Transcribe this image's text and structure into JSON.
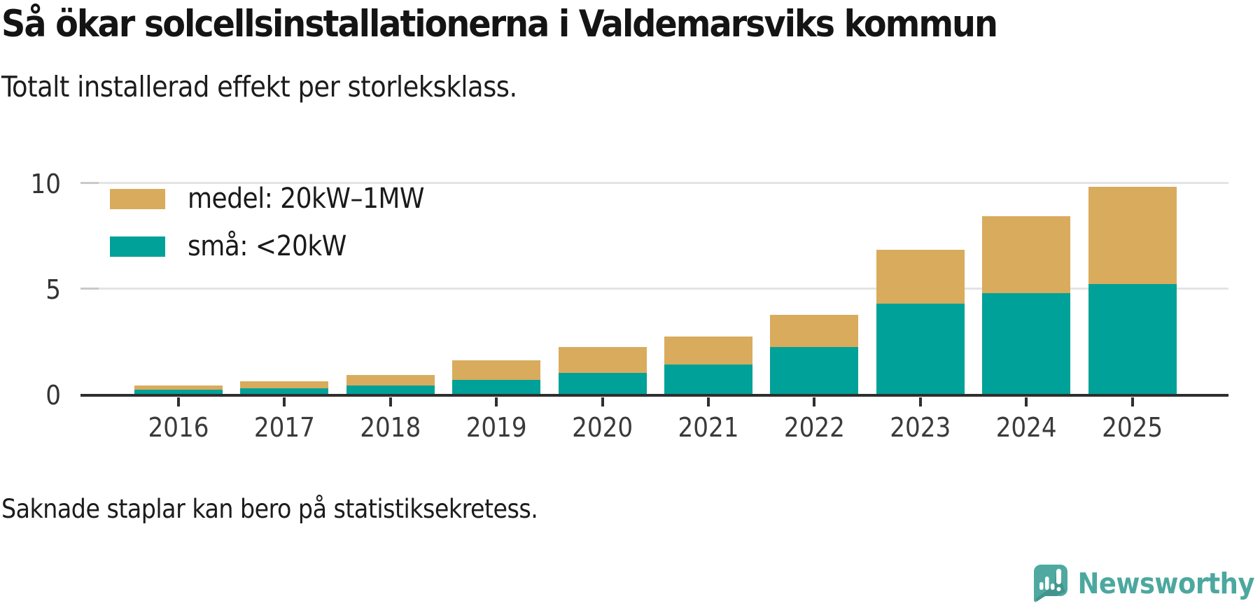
{
  "header": {
    "title": "Så ökar solcellsinstallationerna i Valdemarsviks kommun",
    "subtitle": "Totalt installerad effekt per storleksklass."
  },
  "legend": {
    "items": [
      {
        "label": "medel: 20kW–1MW",
        "color": "#d9ab5c"
      },
      {
        "label": "små: <20kW",
        "color": "#00a198"
      }
    ]
  },
  "footer": {
    "note": "Saknade staplar kan bero på statistiksekretess."
  },
  "branding": {
    "name": "Newsworthy",
    "color": "#4ca89e",
    "icon": "speech-bubble-bar-chart-exclamation",
    "icon_fill": "#4fa9a0",
    "icon_shade": "#41958d",
    "icon_glyph_color": "#ffffff"
  },
  "chart_data": {
    "type": "bar",
    "stacked": true,
    "title": "Så ökar solcellsinstallationerna i Valdemarsviks kommun",
    "subtitle": "Totalt installerad effekt per storleksklass.",
    "note": "Saknade staplar kan bero på statistiksekretess.",
    "categories": [
      "2016",
      "2017",
      "2018",
      "2019",
      "2020",
      "2021",
      "2022",
      "2023",
      "2024",
      "2025"
    ],
    "series": [
      {
        "name": "små: <20kW",
        "color": "#00a198",
        "values": [
          0.2,
          0.25,
          0.4,
          0.65,
          1.0,
          1.4,
          2.2,
          4.25,
          4.75,
          5.2
        ]
      },
      {
        "name": "medel: 20kW–1MW",
        "color": "#d9ab5c",
        "values": [
          0.2,
          0.35,
          0.5,
          0.95,
          1.2,
          1.3,
          1.55,
          2.55,
          3.65,
          4.6
        ]
      }
    ],
    "xlabel": "",
    "ylabel": "",
    "ylim": [
      0,
      10
    ],
    "yticks": [
      0,
      5,
      10
    ],
    "grid": "horizontal",
    "legend_position": "top-left"
  }
}
